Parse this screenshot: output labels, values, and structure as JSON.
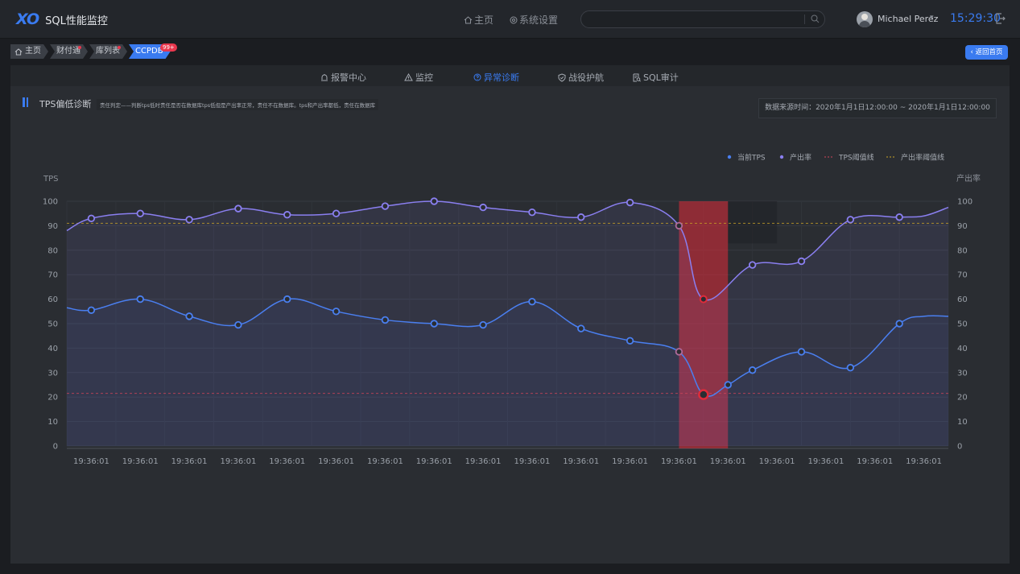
{
  "header": {
    "logo_mark": "XO",
    "app_title": "SQL性能监控",
    "nav_home": "主页",
    "nav_settings": "系统设置",
    "search_value": "",
    "username": "Michael Perez",
    "clock": "15:29:30"
  },
  "breadcrumb": {
    "items": [
      {
        "label": "主页",
        "dot": false
      },
      {
        "label": "财付通",
        "dot": true
      },
      {
        "label": "库列表",
        "dot": true
      },
      {
        "label": "CCPDB",
        "dot": false
      }
    ],
    "badge": "99+",
    "back_label": "返回首页"
  },
  "tabs": [
    {
      "label": "报警中心",
      "icon": "alarm-icon"
    },
    {
      "label": "监控",
      "icon": "warning-icon"
    },
    {
      "label": "异常诊断",
      "icon": "question-icon"
    },
    {
      "label": "战役护航",
      "icon": "shield-icon"
    },
    {
      "label": "SQL审计",
      "icon": "audit-icon"
    }
  ],
  "active_tab": 2,
  "section": {
    "title": "TPS偏低诊断",
    "help": "责任判定——判断tps低时责任是否在数据库tps低但是产出率正常，责任不在数据库。tps和产出率都低，责任在数据库",
    "datasource": "数据来源时间：2020年1月1日12:00:00 ~ 2020年1月1日12:00:00"
  },
  "colors": {
    "accent": "#3a7bf0",
    "tps_line": "#4a7ff0",
    "yield_line": "#8a7ff0",
    "tps_threshold": "#d0455a",
    "yield_threshold": "#c9a227",
    "anomaly": "#e02b3a"
  },
  "chart_data": {
    "type": "line",
    "ylabel_left": "TPS",
    "ylabel_right": "产出率",
    "ylim": [
      0,
      100
    ],
    "yticks": [
      0,
      10,
      20,
      30,
      40,
      50,
      60,
      70,
      80,
      90,
      100
    ],
    "x_ticks": [
      "19:36:01",
      "19:36:01",
      "19:36:01",
      "19:36:01",
      "19:36:01",
      "19:36:01",
      "19:36:01",
      "19:36:01",
      "19:36:01",
      "19:36:01",
      "19:36:01",
      "19:36:01",
      "19:36:01",
      "19:36:01",
      "19:36:01",
      "19:36:01",
      "19:36:01",
      "19:36:01"
    ],
    "grid": true,
    "legend_position": "top-right",
    "legend": [
      "当前TPS",
      "产出率",
      "TPS阈值线",
      "产出率阈值线"
    ],
    "series": [
      {
        "name": "当前TPS",
        "x": [
          0,
          0.5,
          1.5,
          2.5,
          3.5,
          4.5,
          5.5,
          6.5,
          7.5,
          8.5,
          9.5,
          10.5,
          11.5,
          12.5,
          13.0,
          13.5,
          14.0,
          15.0,
          16.0,
          17.0,
          17.5,
          18.0
        ],
        "values": [
          56.5,
          55.5,
          60,
          53,
          49.5,
          60,
          55,
          51.5,
          50,
          49.5,
          59,
          48,
          43,
          38.5,
          21,
          25,
          31,
          38.5,
          32,
          50,
          53,
          53
        ],
        "markers": [
          false,
          true,
          true,
          true,
          true,
          true,
          true,
          true,
          true,
          true,
          true,
          true,
          true,
          true,
          true,
          true,
          true,
          true,
          true,
          true,
          false,
          false
        ]
      },
      {
        "name": "产出率",
        "x": [
          0,
          0.5,
          1.5,
          2.5,
          3.5,
          4.5,
          5.5,
          6.5,
          7.5,
          8.5,
          9.5,
          10.5,
          11.5,
          12.5,
          13.0,
          14.0,
          15.0,
          16.0,
          17.0,
          17.5,
          18.0
        ],
        "values": [
          88,
          93,
          95,
          92.5,
          97,
          94.5,
          95,
          98,
          100,
          97.5,
          95.5,
          93.5,
          99.5,
          90,
          60,
          74,
          75.5,
          92.5,
          93.5,
          94,
          97.5
        ],
        "markers": [
          false,
          true,
          true,
          true,
          true,
          true,
          true,
          true,
          true,
          true,
          true,
          true,
          true,
          true,
          true,
          true,
          true,
          true,
          true,
          false,
          false
        ]
      }
    ],
    "thresholds": {
      "tps": 21.5,
      "yield": 91
    },
    "anomaly_range": [
      12.5,
      13.5
    ],
    "anomaly_points": [
      {
        "series": 0,
        "x": 13.0,
        "y": 21
      },
      {
        "series": 1,
        "x": 13.0,
        "y": 60
      }
    ]
  }
}
